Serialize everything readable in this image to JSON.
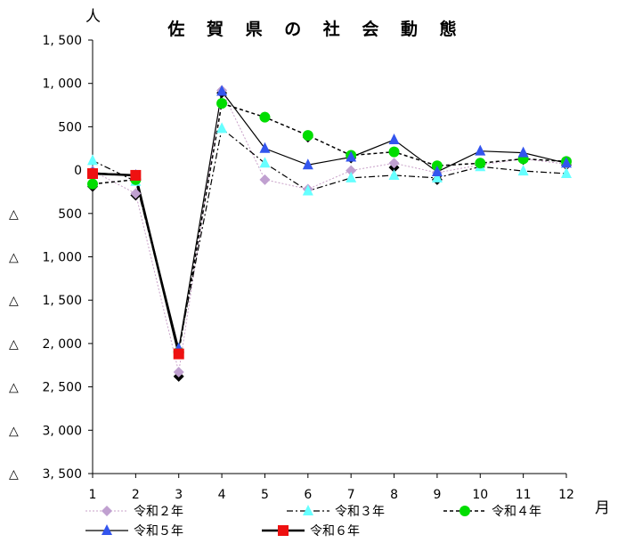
{
  "chart_data": {
    "type": "line",
    "title": "佐 賀 県 の 社 会 動 態",
    "y_unit": "人",
    "x_unit": "月",
    "categories": [
      "1",
      "2",
      "3",
      "4",
      "5",
      "6",
      "7",
      "8",
      "9",
      "10",
      "11",
      "12"
    ],
    "y_ticks": [
      1500,
      1000,
      500,
      0,
      -500,
      -1000,
      -1500,
      -2000,
      -2500,
      -3000,
      -3500
    ],
    "y_tick_labels": [
      "1, 500",
      "1, 000",
      "500",
      "0",
      "△ 500",
      "△ 1, 000",
      "△ 1, 500",
      "△ 2, 000",
      "△ 2, 500",
      "△ 3, 000",
      "△ 3, 500"
    ],
    "ylim": [
      -3500,
      1500
    ],
    "grid": false,
    "legend_position": "bottom",
    "series": [
      {
        "name": "令和２年",
        "color": "#c8a0c8",
        "marker_color": "#c0a0d0",
        "marker": "diamond",
        "dash": "2,2",
        "width": 1,
        "values": [
          -10,
          -270,
          -2330,
          920,
          -110,
          -220,
          -5,
          80,
          -30,
          60,
          130,
          70
        ]
      },
      {
        "name": "令和３年",
        "color": "#000000",
        "marker_color": "#66ffff",
        "marker": "triangle",
        "dash": "7,3,2,3",
        "width": 1.2,
        "values": [
          110,
          -130,
          -2060,
          480,
          80,
          -240,
          -90,
          -60,
          -90,
          40,
          -10,
          -40
        ]
      },
      {
        "name": "令和４年",
        "color": "#000000",
        "marker_color": "#00dd00",
        "marker": "circle",
        "dash": "4,3",
        "width": 1.5,
        "values": [
          -160,
          -110,
          -2100,
          770,
          610,
          400,
          170,
          210,
          50,
          80,
          130,
          100
        ]
      },
      {
        "name": "令和５年",
        "color": "#000000",
        "marker_color": "#3355ee",
        "marker": "triangle",
        "dash": "",
        "width": 1.2,
        "values": [
          -30,
          -60,
          -2060,
          910,
          250,
          60,
          150,
          350,
          -20,
          220,
          200,
          80
        ]
      },
      {
        "name": "令和６年",
        "color": "#000000",
        "marker_color": "#ee1111",
        "marker": "square",
        "dash": "",
        "width": 2.5,
        "values": [
          -40,
          -60,
          -2120,
          null,
          null,
          null,
          null,
          null,
          null,
          null,
          null,
          null
        ]
      }
    ],
    "extra_markers": {
      "note": "black diamond markers",
      "points": [
        [
          1,
          -190
        ],
        [
          2,
          -290
        ],
        [
          3,
          -2380
        ],
        [
          4,
          890
        ],
        [
          5,
          610
        ],
        [
          6,
          380
        ],
        [
          7,
          140
        ],
        [
          8,
          30
        ],
        [
          9,
          -110
        ],
        [
          10,
          60
        ],
        [
          11,
          120
        ],
        [
          12,
          60
        ]
      ]
    }
  }
}
